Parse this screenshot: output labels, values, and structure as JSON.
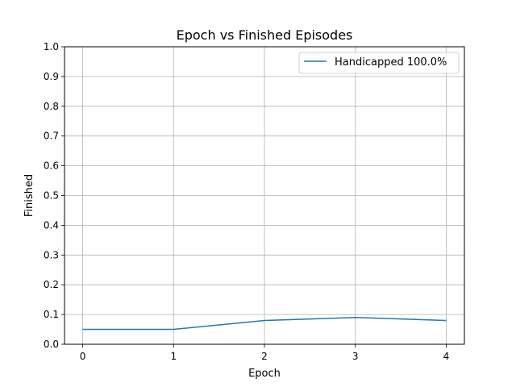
{
  "chart_data": {
    "type": "line",
    "title": "Epoch vs Finished Episodes",
    "xlabel": "Epoch",
    "ylabel": "Finished",
    "xlim": [
      -0.2,
      4.2
    ],
    "ylim": [
      0.0,
      1.0
    ],
    "x_ticks": [
      "0",
      "1",
      "2",
      "3",
      "4"
    ],
    "y_ticks": [
      "0.0",
      "0.1",
      "0.2",
      "0.3",
      "0.4",
      "0.5",
      "0.6",
      "0.7",
      "0.8",
      "0.9",
      "1.0"
    ],
    "grid": true,
    "legend_position": "top-right",
    "series": [
      {
        "name": "Handicapped 100.0%",
        "color": "#1f77b4",
        "x": [
          0,
          1,
          2,
          3,
          4
        ],
        "y": [
          0.05,
          0.05,
          0.08,
          0.09,
          0.08
        ]
      }
    ]
  }
}
